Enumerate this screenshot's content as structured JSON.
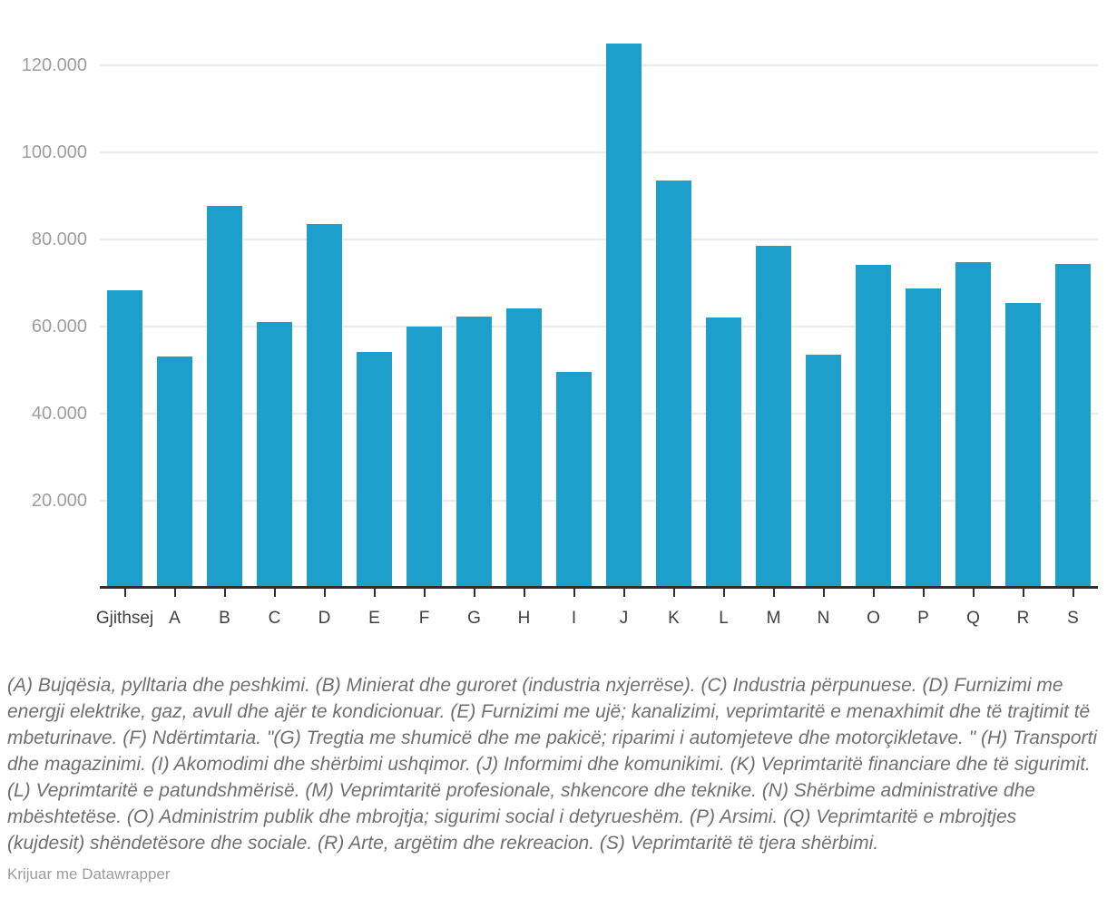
{
  "chart_data": {
    "type": "bar",
    "title": "",
    "xlabel": "",
    "ylabel": "",
    "categories": [
      "Gjithsej",
      "A",
      "B",
      "C",
      "D",
      "E",
      "F",
      "G",
      "H",
      "I",
      "J",
      "K",
      "L",
      "M",
      "N",
      "O",
      "P",
      "Q",
      "R",
      "S"
    ],
    "values": [
      68300,
      53100,
      87600,
      61000,
      83500,
      54200,
      59900,
      62200,
      64100,
      49500,
      125000,
      93500,
      62100,
      78400,
      53500,
      74100,
      68800,
      74800,
      65300,
      74400
    ],
    "ylim": [
      0,
      134900
    ],
    "grid": true,
    "legend_position": "none",
    "bar_color": "#1ca0cb",
    "y_ticks": [
      {
        "value": 20000,
        "label": "20.000"
      },
      {
        "value": 40000,
        "label": "40.000"
      },
      {
        "value": 60000,
        "label": "60.000"
      },
      {
        "value": 80000,
        "label": "80.000"
      },
      {
        "value": 100000,
        "label": "100.000"
      },
      {
        "value": 120000,
        "label": "120.000"
      }
    ]
  },
  "footer": {
    "notes": "(A) Bujqësia, pylltaria dhe peshkimi. (B) Minierat dhe guroret (industria nxjerrëse). (C) Industria përpunuese. (D) Furnizimi me energji elektrike, gaz, avull dhe ajër te kondicionuar. (E) Furnizimi me ujë; kanalizimi, veprimtaritë e menaxhimit dhe të trajtimit të mbeturinave. (F) Ndërtimtaria. \"(G) Tregtia me shumicë dhe me pakicë; riparimi i automjeteve dhe motorçikletave. \" (H) Transporti dhe magazinimi. (I) Akomodimi dhe shërbimi ushqimor. (J) Informimi dhe komunikimi. (K) Veprimtaritë financiare dhe të sigurimit. (L) Veprimtaritë e patundshmërisë. (M) Veprimtaritë profesionale, shkencore dhe teknike. (N) Shërbime administrative dhe mbështetëse. (O) Administrim publik dhe mbrojtja; sigurimi social i detyrueshëm. (P) Arsimi. (Q) Veprimtaritë e mbrojtjes (kujdesit) shëndetësore dhe sociale. (R) Arte, argëtim dhe rekreacion. (S) Veprimtaritë të tjera shërbimi.",
    "attribution_prefix": "Krijuar me",
    "attribution_brand": "Datawrapper"
  }
}
